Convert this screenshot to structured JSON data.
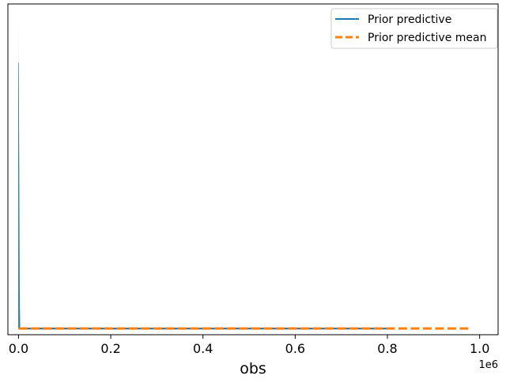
{
  "chart_data": {
    "type": "line",
    "xlabel": "obs",
    "ylabel": "",
    "x_offset_label": "1e6",
    "x_ticks": [
      0.0,
      200000,
      400000,
      600000,
      800000,
      1000000
    ],
    "x_tick_labels": [
      "0.0",
      "0.2",
      "0.4",
      "0.6",
      "0.8",
      "1.0"
    ],
    "xlim": [
      -23000,
      1040000
    ],
    "ylim": [
      -0.02,
      1.05
    ],
    "y_ticks_visible": false,
    "grid": false,
    "legend": {
      "position": "upper-right",
      "entries": [
        {
          "label": "Prior predictive",
          "style": "solid",
          "color": "#1f77b4"
        },
        {
          "label": "Prior predictive mean",
          "style": "dashed",
          "color": "#ff7f0e"
        }
      ]
    },
    "series": [
      {
        "name": "Prior predictive",
        "color": "#1f77b4",
        "x_range": [
          0,
          800000
        ],
        "peak_x": 300,
        "peak_density": 1.0,
        "peak_density_secondary": 0.86
      },
      {
        "name": "Prior predictive mean",
        "color": "#ff7f0e",
        "x_range": [
          0,
          980000
        ],
        "density": 0.0
      }
    ]
  }
}
